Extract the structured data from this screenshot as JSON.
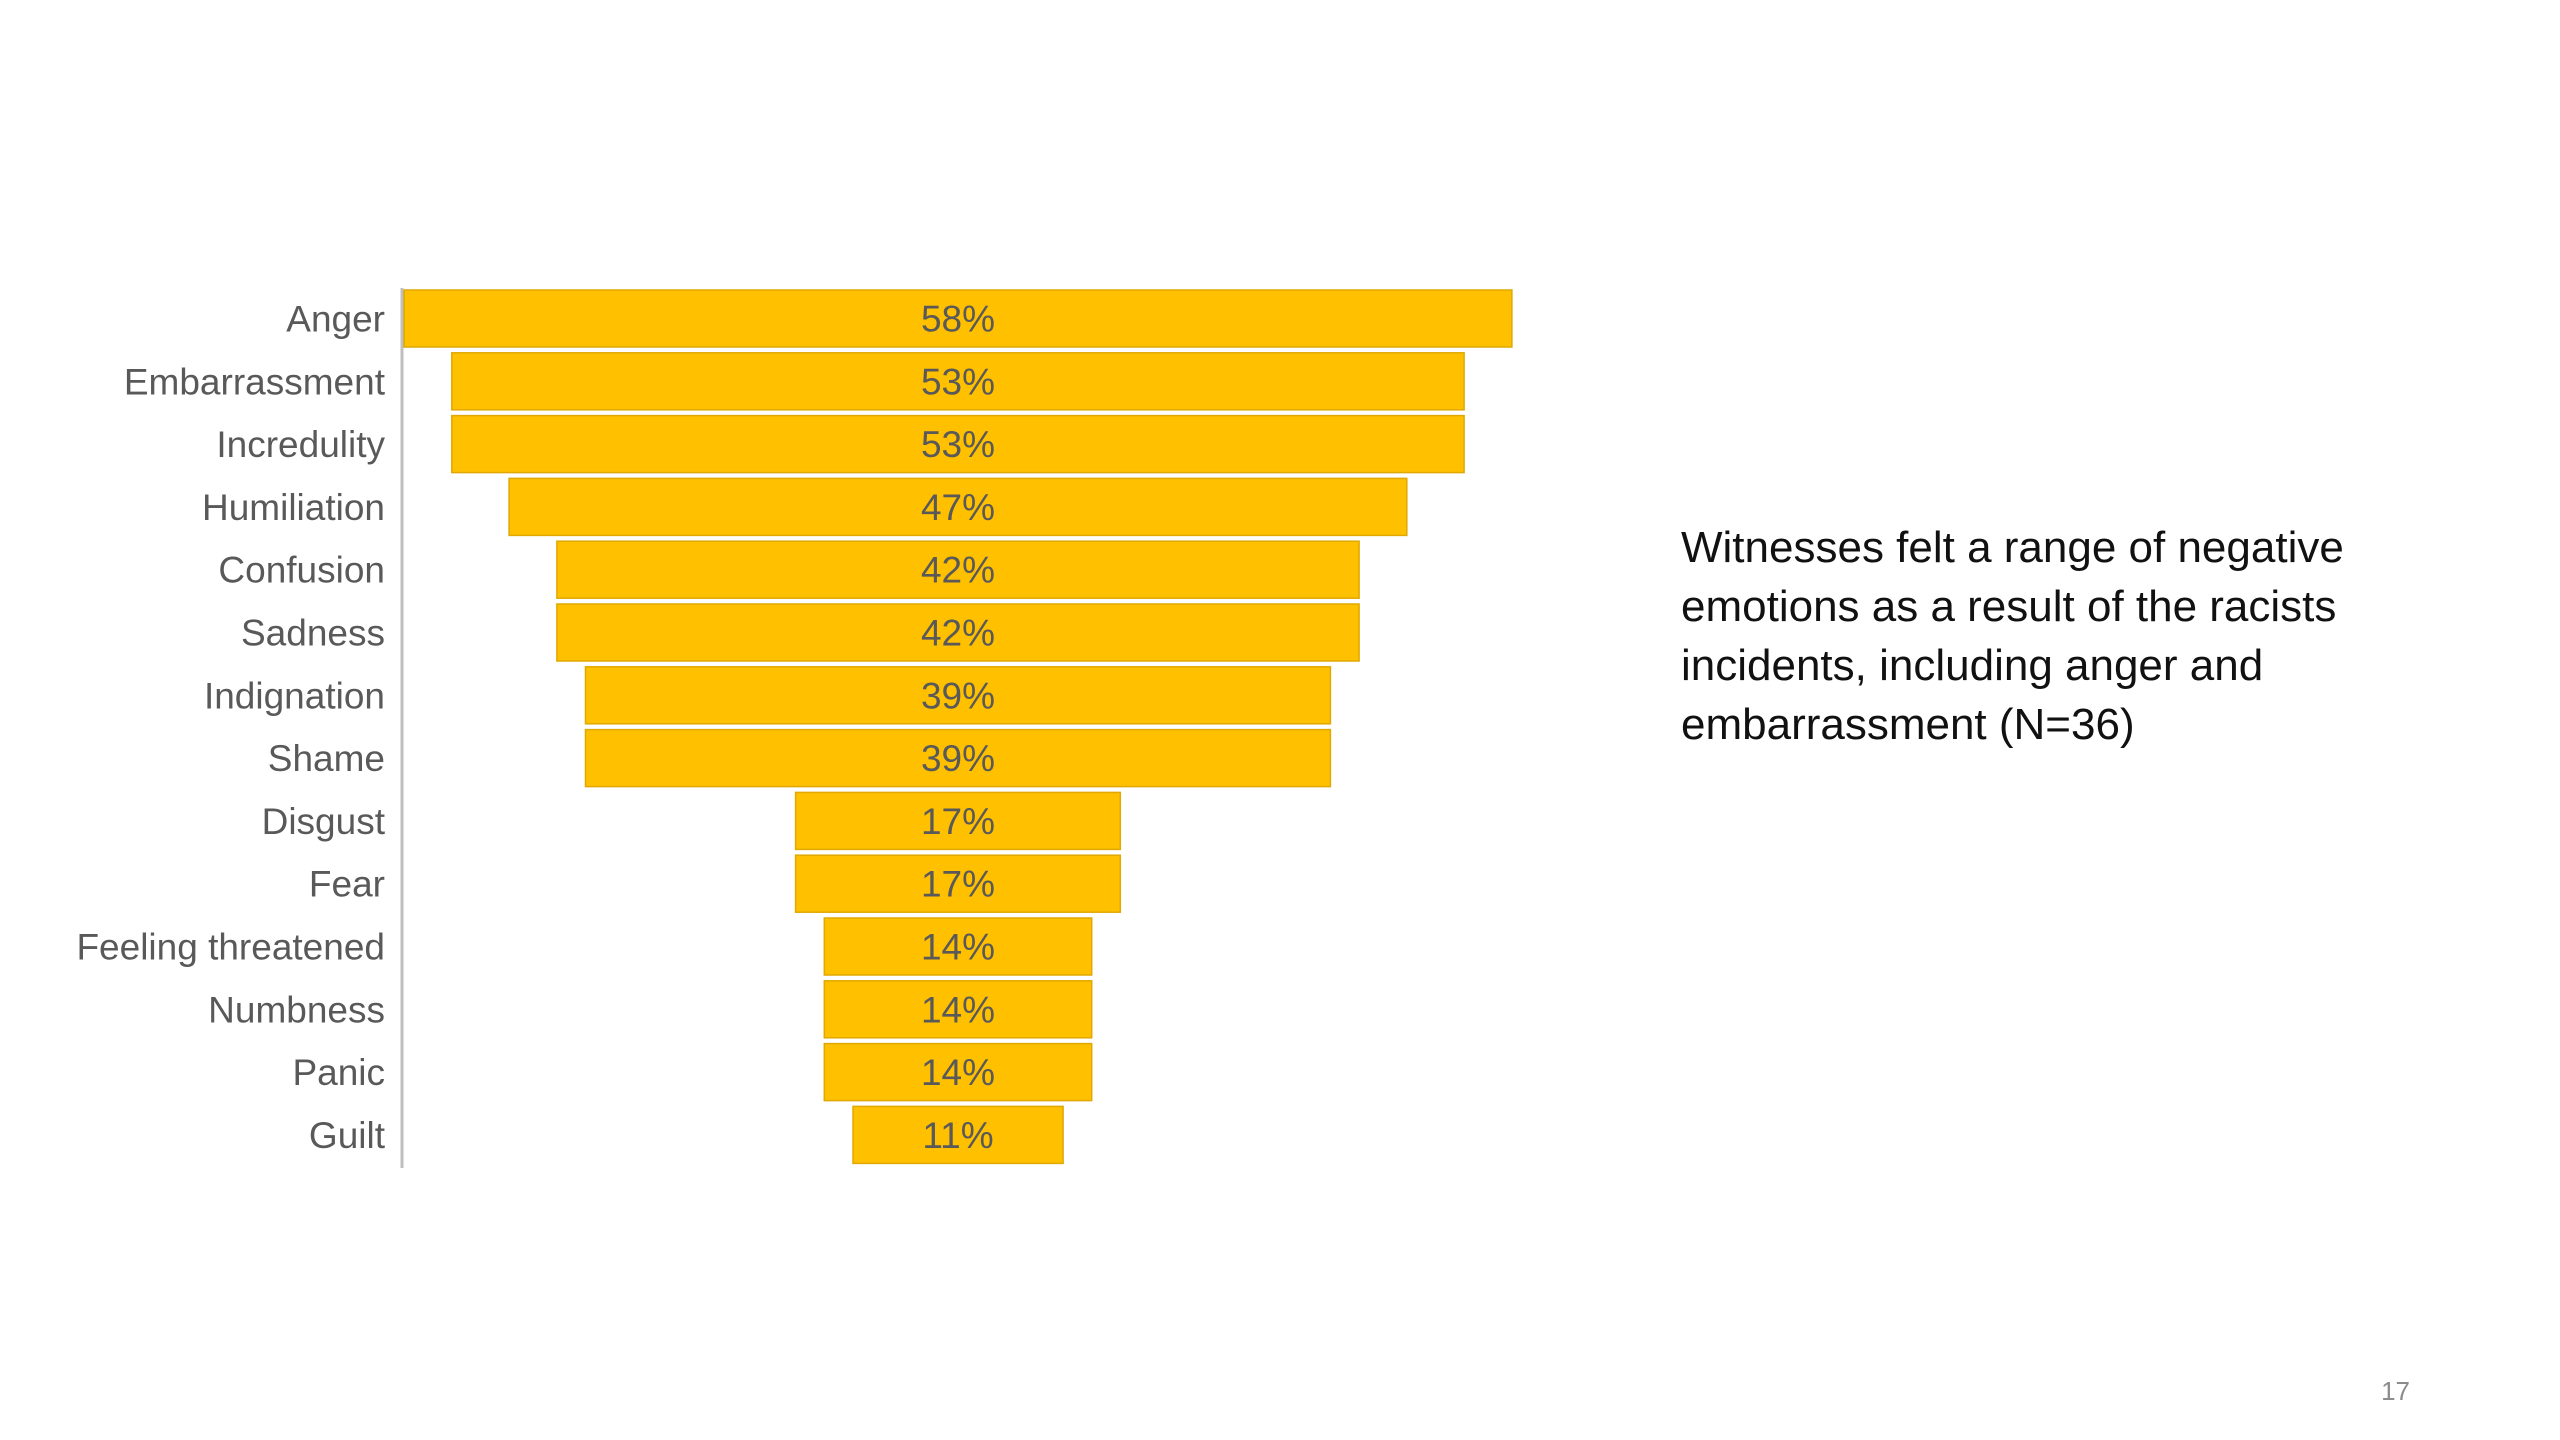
{
  "slide": {
    "caption": "Witnesses felt a range of negative emotions as a result of the racists incidents, including anger and embarrassment (N=36)",
    "page_number": "17"
  },
  "colors": {
    "bar_fill": "#FFC000",
    "bar_stroke": "#E0A800",
    "label_text": "#595959",
    "axis_line": "#BFBFBF"
  },
  "chart_data": {
    "type": "bar",
    "orientation": "horizontal",
    "style": "funnel (bars centered)",
    "categories": [
      "Anger",
      "Embarrassment",
      "Incredulity",
      "Humiliation",
      "Confusion",
      "Sadness",
      "Indignation",
      "Shame",
      "Disgust",
      "Fear",
      "Feeling threatened",
      "Numbness",
      "Panic",
      "Guilt"
    ],
    "values": [
      58,
      53,
      53,
      47,
      42,
      42,
      39,
      39,
      17,
      17,
      14,
      14,
      14,
      11
    ],
    "value_labels": [
      "58%",
      "53%",
      "53%",
      "47%",
      "42%",
      "42%",
      "39%",
      "39%",
      "17%",
      "17%",
      "14%",
      "14%",
      "14%",
      "11%"
    ],
    "unit": "%",
    "title": "",
    "xlabel": "",
    "ylabel": "",
    "grid": false,
    "legend": "none"
  }
}
